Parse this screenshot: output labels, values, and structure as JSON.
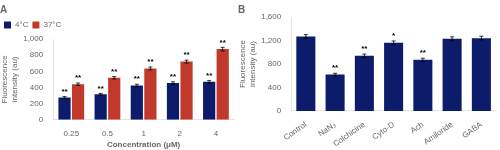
{
  "chart_data": [
    {
      "type": "bar",
      "title": "A",
      "categories": [
        "0.25",
        "0.5",
        "1",
        "2",
        "4"
      ],
      "series": [
        {
          "name": "4°C",
          "color": "#0d1b6b",
          "values": [
            275,
            315,
            425,
            455,
            470
          ],
          "errors": [
            12,
            12,
            15,
            15,
            15
          ],
          "significance": [
            "**",
            "**",
            "**",
            "**",
            "**"
          ]
        },
        {
          "name": "37°C",
          "color": "#c0392b",
          "values": [
            440,
            520,
            635,
            720,
            875
          ],
          "errors": [
            15,
            15,
            18,
            18,
            22
          ],
          "significance": [
            "**",
            "**",
            "**",
            "**",
            "**"
          ]
        }
      ],
      "xlabel": "Concentration (μM)",
      "ylabel": "Fluorescence\nintensity (au)",
      "ylim": [
        0,
        1000
      ],
      "yticks": [
        0,
        200,
        400,
        600,
        800,
        {
          "value": 1000,
          "label": "1,000"
        }
      ],
      "legend": "upper left",
      "grid": false
    },
    {
      "type": "bar",
      "title": "B",
      "categories": [
        "Control",
        "NaN₃",
        "Colchicine",
        "Cyto-D",
        "Ach",
        "Amiloride",
        "GABA"
      ],
      "values": [
        1270,
        620,
        940,
        1160,
        870,
        1230,
        1240
      ],
      "errors": [
        30,
        22,
        28,
        32,
        28,
        32,
        32
      ],
      "significance": [
        null,
        "**",
        "**",
        "*",
        "**",
        null,
        null
      ],
      "color": "#0d1b6b",
      "ylabel": "Fluorescence\nintensity (au)",
      "ylim": [
        0,
        1600
      ],
      "yticks": [
        0,
        400,
        800,
        {
          "value": 1200,
          "label": "1,200"
        },
        {
          "value": 1600,
          "label": "1,600"
        }
      ],
      "grid": false
    }
  ]
}
